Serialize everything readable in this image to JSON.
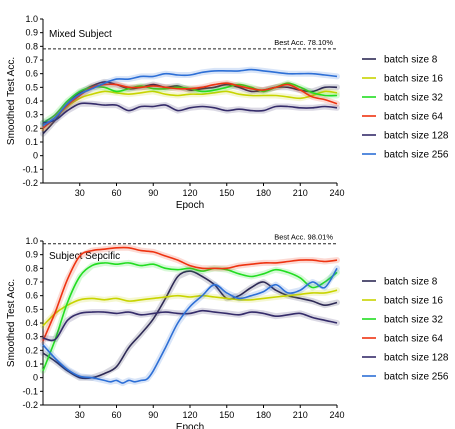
{
  "chart_data": [
    {
      "type": "line",
      "title": "Mixed Subject",
      "xlabel": "Epoch",
      "ylabel": "Smoothed Test Acc.",
      "xlim": [
        0,
        240
      ],
      "ylim": [
        -0.2,
        1.0
      ],
      "xticks": [
        30,
        60,
        90,
        120,
        150,
        180,
        210,
        240
      ],
      "yticks": [
        -0.2,
        -0.1,
        0,
        0.1,
        0.2,
        0.3,
        0.4,
        0.5,
        0.6,
        0.7,
        0.8,
        0.9,
        1.0
      ],
      "best_line": 0.781,
      "best_label": "Best Acc. 78.10%",
      "legend_position": "right",
      "series": [
        {
          "name": "batch size 8",
          "color": "#2e2a55",
          "x": [
            0,
            10,
            20,
            30,
            40,
            50,
            60,
            70,
            80,
            90,
            100,
            110,
            120,
            130,
            140,
            150,
            160,
            170,
            180,
            190,
            200,
            210,
            220,
            230,
            240
          ],
          "y": [
            0.16,
            0.26,
            0.38,
            0.46,
            0.51,
            0.54,
            0.52,
            0.49,
            0.5,
            0.52,
            0.5,
            0.51,
            0.48,
            0.49,
            0.5,
            0.52,
            0.5,
            0.47,
            0.48,
            0.5,
            0.5,
            0.48,
            0.47,
            0.5,
            0.5
          ]
        },
        {
          "name": "batch size 16",
          "color": "#c8d400",
          "x": [
            0,
            10,
            20,
            30,
            40,
            50,
            60,
            70,
            80,
            90,
            100,
            110,
            120,
            130,
            140,
            150,
            160,
            170,
            180,
            190,
            200,
            210,
            220,
            230,
            240
          ],
          "y": [
            0.2,
            0.28,
            0.36,
            0.42,
            0.45,
            0.47,
            0.46,
            0.45,
            0.46,
            0.47,
            0.45,
            0.44,
            0.45,
            0.45,
            0.46,
            0.47,
            0.45,
            0.44,
            0.44,
            0.44,
            0.43,
            0.42,
            0.44,
            0.47,
            0.46
          ]
        },
        {
          "name": "batch size 32",
          "color": "#22dd22",
          "x": [
            0,
            10,
            20,
            30,
            40,
            50,
            60,
            70,
            80,
            90,
            100,
            110,
            120,
            130,
            140,
            150,
            160,
            170,
            180,
            190,
            200,
            210,
            220,
            230,
            240
          ],
          "y": [
            0.24,
            0.3,
            0.4,
            0.47,
            0.5,
            0.5,
            0.47,
            0.49,
            0.51,
            0.49,
            0.49,
            0.5,
            0.49,
            0.47,
            0.48,
            0.5,
            0.52,
            0.5,
            0.47,
            0.5,
            0.53,
            0.5,
            0.46,
            0.44,
            0.44
          ]
        },
        {
          "name": "batch size 64",
          "color": "#ee3311",
          "x": [
            0,
            10,
            20,
            30,
            40,
            50,
            60,
            70,
            80,
            90,
            100,
            110,
            120,
            130,
            140,
            150,
            160,
            170,
            180,
            190,
            200,
            210,
            220,
            230,
            240
          ],
          "y": [
            0.2,
            0.28,
            0.37,
            0.44,
            0.5,
            0.52,
            0.52,
            0.5,
            0.5,
            0.51,
            0.5,
            0.49,
            0.49,
            0.5,
            0.52,
            0.53,
            0.51,
            0.49,
            0.48,
            0.5,
            0.52,
            0.48,
            0.43,
            0.41,
            0.38
          ]
        },
        {
          "name": "batch size 128",
          "color": "#352c6a",
          "x": [
            0,
            10,
            20,
            30,
            40,
            50,
            60,
            70,
            80,
            90,
            100,
            110,
            120,
            130,
            140,
            150,
            160,
            170,
            180,
            190,
            200,
            210,
            220,
            230,
            240
          ],
          "y": [
            0.24,
            0.26,
            0.33,
            0.38,
            0.38,
            0.37,
            0.37,
            0.33,
            0.36,
            0.36,
            0.37,
            0.33,
            0.35,
            0.36,
            0.35,
            0.33,
            0.34,
            0.33,
            0.33,
            0.36,
            0.36,
            0.35,
            0.35,
            0.36,
            0.35
          ]
        },
        {
          "name": "batch size 256",
          "color": "#2d6fd6",
          "x": [
            0,
            10,
            20,
            30,
            40,
            50,
            60,
            70,
            80,
            90,
            100,
            110,
            120,
            130,
            140,
            150,
            160,
            170,
            180,
            190,
            200,
            210,
            220,
            230,
            240
          ],
          "y": [
            0.22,
            0.28,
            0.38,
            0.45,
            0.49,
            0.53,
            0.56,
            0.56,
            0.58,
            0.58,
            0.6,
            0.59,
            0.59,
            0.61,
            0.62,
            0.62,
            0.62,
            0.63,
            0.62,
            0.61,
            0.6,
            0.6,
            0.6,
            0.59,
            0.58
          ]
        }
      ]
    },
    {
      "type": "line",
      "title": "Subject  Sepcific",
      "xlabel": "Epoch",
      "ylabel": "Smoothed Test Acc.",
      "xlim": [
        0,
        240
      ],
      "ylim": [
        -0.2,
        1.0
      ],
      "xticks": [
        30,
        60,
        90,
        120,
        150,
        180,
        210,
        240
      ],
      "yticks": [
        -0.2,
        -0.1,
        0,
        0.1,
        0.2,
        0.3,
        0.4,
        0.5,
        0.6,
        0.7,
        0.8,
        0.9,
        1.0
      ],
      "best_line": 0.9801,
      "best_label": "Best Acc. 98.01%",
      "legend_position": "right",
      "series": [
        {
          "name": "batch size 8",
          "color": "#2e2a55",
          "x": [
            0,
            10,
            20,
            30,
            40,
            50,
            60,
            70,
            80,
            90,
            100,
            110,
            120,
            130,
            140,
            150,
            160,
            170,
            180,
            190,
            200,
            210,
            220,
            230,
            240
          ],
          "y": [
            0.18,
            0.12,
            0.05,
            0.0,
            0.0,
            0.03,
            0.08,
            0.22,
            0.32,
            0.43,
            0.58,
            0.74,
            0.78,
            0.74,
            0.68,
            0.58,
            0.6,
            0.66,
            0.7,
            0.64,
            0.6,
            0.58,
            0.56,
            0.53,
            0.55
          ]
        },
        {
          "name": "batch size 16",
          "color": "#c8d400",
          "x": [
            0,
            10,
            20,
            30,
            40,
            50,
            60,
            70,
            80,
            90,
            100,
            110,
            120,
            130,
            140,
            150,
            160,
            170,
            180,
            190,
            200,
            210,
            220,
            230,
            240
          ],
          "y": [
            0.38,
            0.47,
            0.53,
            0.57,
            0.58,
            0.57,
            0.58,
            0.56,
            0.57,
            0.58,
            0.59,
            0.6,
            0.59,
            0.6,
            0.59,
            0.58,
            0.57,
            0.57,
            0.58,
            0.59,
            0.6,
            0.61,
            0.62,
            0.62,
            0.64
          ]
        },
        {
          "name": "batch size 32",
          "color": "#22dd22",
          "x": [
            0,
            10,
            20,
            30,
            40,
            50,
            60,
            70,
            80,
            90,
            100,
            110,
            120,
            130,
            140,
            150,
            160,
            170,
            180,
            190,
            200,
            210,
            220,
            230,
            240
          ],
          "y": [
            0.05,
            0.28,
            0.55,
            0.74,
            0.82,
            0.84,
            0.83,
            0.84,
            0.82,
            0.83,
            0.8,
            0.79,
            0.8,
            0.78,
            0.8,
            0.79,
            0.76,
            0.74,
            0.76,
            0.79,
            0.77,
            0.73,
            0.66,
            0.7,
            0.77
          ]
        },
        {
          "name": "batch size 64",
          "color": "#ee3311",
          "x": [
            0,
            10,
            20,
            30,
            40,
            50,
            60,
            70,
            80,
            90,
            100,
            110,
            120,
            130,
            140,
            150,
            160,
            170,
            180,
            190,
            200,
            210,
            220,
            230,
            240
          ],
          "y": [
            0.27,
            0.48,
            0.72,
            0.89,
            0.93,
            0.94,
            0.95,
            0.95,
            0.93,
            0.92,
            0.89,
            0.86,
            0.82,
            0.8,
            0.8,
            0.8,
            0.82,
            0.83,
            0.84,
            0.84,
            0.85,
            0.86,
            0.86,
            0.85,
            0.86
          ]
        },
        {
          "name": "batch size 128",
          "color": "#352c6a",
          "x": [
            0,
            10,
            20,
            30,
            40,
            50,
            60,
            70,
            80,
            90,
            100,
            110,
            120,
            130,
            140,
            150,
            160,
            170,
            180,
            190,
            200,
            210,
            220,
            230,
            240
          ],
          "y": [
            0.29,
            0.28,
            0.42,
            0.47,
            0.48,
            0.48,
            0.47,
            0.48,
            0.46,
            0.47,
            0.48,
            0.47,
            0.47,
            0.49,
            0.48,
            0.47,
            0.46,
            0.48,
            0.47,
            0.45,
            0.46,
            0.47,
            0.44,
            0.42,
            0.4
          ]
        },
        {
          "name": "batch size 256",
          "color": "#2d6fd6",
          "x": [
            0,
            10,
            20,
            30,
            40,
            50,
            55,
            60,
            65,
            70,
            75,
            80,
            85,
            90,
            100,
            110,
            120,
            130,
            140,
            150,
            160,
            170,
            180,
            190,
            200,
            210,
            220,
            230,
            240
          ],
          "y": [
            0.24,
            0.14,
            0.06,
            0.01,
            0.0,
            -0.02,
            -0.03,
            -0.02,
            -0.04,
            -0.02,
            -0.03,
            -0.02,
            -0.01,
            0.05,
            0.22,
            0.4,
            0.52,
            0.6,
            0.68,
            0.62,
            0.58,
            0.6,
            0.63,
            0.68,
            0.62,
            0.64,
            0.7,
            0.66,
            0.8
          ]
        }
      ]
    }
  ]
}
